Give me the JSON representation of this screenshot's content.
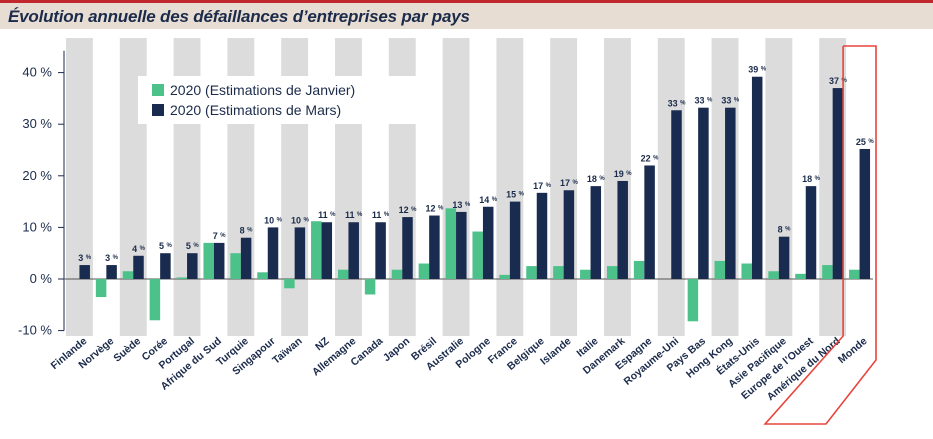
{
  "title": "Évolution annuelle des défaillances d’entreprises par pays",
  "colors": {
    "accent": "#c0282d",
    "header_bg": "#e8ddd2",
    "band": "#dcdcdc",
    "january": "#4cc28a",
    "march": "#1a2b50",
    "text": "#1b2b4b",
    "highlight_box": "#e8453c"
  },
  "legend": {
    "series_a": "2020 (Estimations de Janvier)",
    "series_b": "2020 (Estimations de Mars)"
  },
  "chart_data": {
    "type": "bar",
    "title": "Évolution annuelle des défaillances d’entreprises par pays",
    "xlabel": "",
    "ylabel": "",
    "ylim": [
      -10,
      45
    ],
    "yticks": [
      {
        "value": 40,
        "label": "40 %"
      },
      {
        "value": 30,
        "label": "30 %"
      },
      {
        "value": 20,
        "label": "20 %"
      },
      {
        "value": 10,
        "label": "10 %"
      },
      {
        "value": 0,
        "label": "0 %"
      },
      {
        "value": -10,
        "label": "-10 %"
      }
    ],
    "legend_position": "top-left",
    "alternating_bands": true,
    "highlighted_category": "Monde",
    "categories": [
      "Finlande",
      "Norvège",
      "Suède",
      "Corée",
      "Portugal",
      "Afrique du Sud",
      "Turquie",
      "Singapour",
      "Taïwan",
      "NZ",
      "Allemagne",
      "Canada",
      "Japon",
      "Brésil",
      "Australie",
      "Pologne",
      "France",
      "Belgique",
      "Islande",
      "Italie",
      "Danemark",
      "Espagne",
      "Royaume-Uni",
      "Pays Bas",
      "Hong Kong",
      "États-Unis",
      "Asie Pacifique",
      "Europe de l’Ouest",
      "Amérique du Nord",
      "Monde"
    ],
    "series": [
      {
        "name": "2020 (Estimations de Janvier)",
        "values": [
          0,
          -3.5,
          1.5,
          -8,
          0.3,
          7,
          5,
          1.3,
          -1.8,
          11.2,
          1.8,
          -3,
          1.8,
          3,
          13.7,
          9.2,
          0.8,
          2.5,
          2.5,
          1.8,
          2.5,
          3.5,
          0,
          -8.2,
          3.5,
          3,
          1.5,
          1,
          2.7,
          1.8
        ]
      },
      {
        "name": "2020 (Estimations de Mars)",
        "values": [
          2.7,
          2.7,
          4.5,
          5,
          5,
          7,
          8,
          10,
          10,
          11,
          11,
          11,
          12,
          12.3,
          13,
          14,
          15,
          16.7,
          17.2,
          18,
          19,
          22,
          32.7,
          33.2,
          33.2,
          39.2,
          8.2,
          18,
          37,
          25.2
        ]
      }
    ],
    "data_labels": [
      "3",
      "3",
      "4",
      "5",
      "5",
      "7",
      "8",
      "10",
      "10",
      "11",
      "11",
      "11",
      "12",
      "12",
      "13",
      "14",
      "15",
      "17",
      "17",
      "18",
      "19",
      "22",
      "33",
      "33",
      "33",
      "39",
      "8",
      "18",
      "37",
      "25"
    ],
    "data_label_unit": "%"
  }
}
